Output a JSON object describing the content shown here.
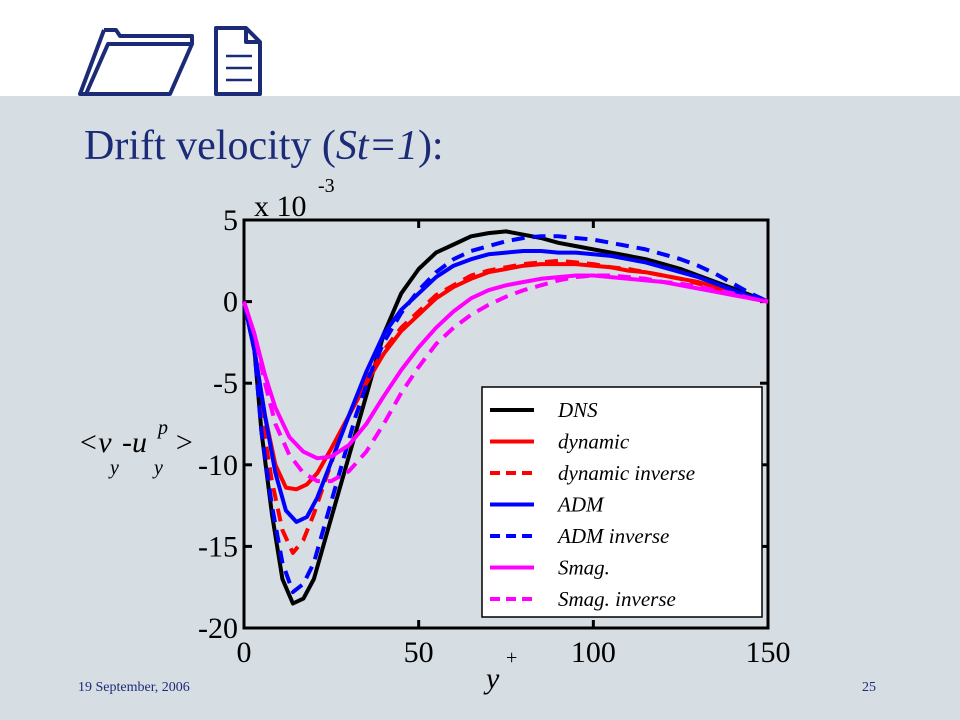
{
  "slide": {
    "title_main": "Drift velocity (",
    "title_em": "St=1",
    "title_end": "):",
    "footer_date": "19 September, 2006",
    "page_number": "25"
  },
  "chart_data": {
    "type": "line",
    "x_label": "y",
    "x_label_sup": "+",
    "y_label": {
      "open": "<v",
      "sub1": "y",
      "mid": " -u",
      "sup": "p",
      "sub2": "y",
      "close": ">"
    },
    "y_multiplier": {
      "text": "x 10",
      "exponent": "-3"
    },
    "xlim": [
      0,
      150
    ],
    "ylim": [
      -20,
      5
    ],
    "x_ticks": [
      0,
      50,
      100,
      150
    ],
    "y_ticks": [
      5,
      0,
      -5,
      -10,
      -15,
      -20
    ],
    "grid": false,
    "legend_position": "lower-right",
    "series": [
      {
        "name": "DNS",
        "color": "#000000",
        "dash": "solid",
        "points": [
          [
            0,
            0
          ],
          [
            3,
            -3
          ],
          [
            5,
            -8
          ],
          [
            8,
            -13
          ],
          [
            11,
            -17
          ],
          [
            14,
            -18.5
          ],
          [
            17,
            -18.2
          ],
          [
            20,
            -17
          ],
          [
            24,
            -14
          ],
          [
            28,
            -11
          ],
          [
            32,
            -8
          ],
          [
            36,
            -5
          ],
          [
            40,
            -2
          ],
          [
            45,
            0.5
          ],
          [
            50,
            2
          ],
          [
            55,
            3
          ],
          [
            60,
            3.5
          ],
          [
            65,
            4
          ],
          [
            70,
            4.2
          ],
          [
            75,
            4.3
          ],
          [
            80,
            4.1
          ],
          [
            85,
            3.9
          ],
          [
            90,
            3.6
          ],
          [
            95,
            3.4
          ],
          [
            100,
            3.2
          ],
          [
            105,
            3
          ],
          [
            110,
            2.8
          ],
          [
            115,
            2.6
          ],
          [
            120,
            2.3
          ],
          [
            125,
            2
          ],
          [
            130,
            1.6
          ],
          [
            135,
            1.2
          ],
          [
            140,
            0.8
          ],
          [
            145,
            0.4
          ],
          [
            150,
            0
          ]
        ]
      },
      {
        "name": "dynamic",
        "color": "#ff0000",
        "dash": "solid",
        "points": [
          [
            0,
            0
          ],
          [
            3,
            -3
          ],
          [
            6,
            -7
          ],
          [
            9,
            -10
          ],
          [
            12,
            -11.4
          ],
          [
            15,
            -11.5
          ],
          [
            18,
            -11.2
          ],
          [
            21,
            -10.5
          ],
          [
            25,
            -9
          ],
          [
            30,
            -7
          ],
          [
            35,
            -5
          ],
          [
            40,
            -3.2
          ],
          [
            45,
            -1.8
          ],
          [
            50,
            -0.8
          ],
          [
            55,
            0.2
          ],
          [
            60,
            0.9
          ],
          [
            65,
            1.4
          ],
          [
            70,
            1.8
          ],
          [
            75,
            2
          ],
          [
            80,
            2.2
          ],
          [
            85,
            2.3
          ],
          [
            90,
            2.3
          ],
          [
            95,
            2.3
          ],
          [
            100,
            2.2
          ],
          [
            105,
            2.1
          ],
          [
            110,
            1.9
          ],
          [
            115,
            1.8
          ],
          [
            120,
            1.6
          ],
          [
            125,
            1.4
          ],
          [
            130,
            1.2
          ],
          [
            135,
            0.9
          ],
          [
            140,
            0.6
          ],
          [
            145,
            0.3
          ],
          [
            150,
            0
          ]
        ]
      },
      {
        "name": "dynamic inverse",
        "color": "#ff0000",
        "dash": "dashed",
        "points": [
          [
            0,
            0
          ],
          [
            3,
            -3
          ],
          [
            5,
            -7
          ],
          [
            8,
            -11
          ],
          [
            11,
            -14
          ],
          [
            14,
            -15.4
          ],
          [
            17,
            -14.6
          ],
          [
            20,
            -13
          ],
          [
            24,
            -10.5
          ],
          [
            28,
            -8
          ],
          [
            32,
            -6
          ],
          [
            36,
            -4.4
          ],
          [
            40,
            -3
          ],
          [
            45,
            -1.6
          ],
          [
            50,
            -0.6
          ],
          [
            55,
            0.4
          ],
          [
            60,
            1
          ],
          [
            65,
            1.6
          ],
          [
            70,
            1.9
          ],
          [
            75,
            2.1
          ],
          [
            80,
            2.3
          ],
          [
            85,
            2.4
          ],
          [
            90,
            2.5
          ],
          [
            95,
            2.4
          ],
          [
            100,
            2.3
          ],
          [
            105,
            2.1
          ],
          [
            110,
            2
          ],
          [
            115,
            1.8
          ],
          [
            120,
            1.6
          ],
          [
            125,
            1.4
          ],
          [
            130,
            1.1
          ],
          [
            135,
            0.8
          ],
          [
            140,
            0.5
          ],
          [
            145,
            0.2
          ],
          [
            150,
            0
          ]
        ]
      },
      {
        "name": "ADM",
        "color": "#0000ff",
        "dash": "solid",
        "points": [
          [
            0,
            0
          ],
          [
            3,
            -3
          ],
          [
            6,
            -7
          ],
          [
            9,
            -10.5
          ],
          [
            12,
            -12.8
          ],
          [
            15,
            -13.5
          ],
          [
            18,
            -13.2
          ],
          [
            21,
            -12
          ],
          [
            25,
            -9.8
          ],
          [
            30,
            -7
          ],
          [
            35,
            -4.3
          ],
          [
            40,
            -2
          ],
          [
            45,
            -0.5
          ],
          [
            50,
            0.5
          ],
          [
            55,
            1.5
          ],
          [
            60,
            2.2
          ],
          [
            65,
            2.6
          ],
          [
            70,
            2.9
          ],
          [
            75,
            3
          ],
          [
            80,
            3.1
          ],
          [
            85,
            3.1
          ],
          [
            90,
            3
          ],
          [
            95,
            3
          ],
          [
            100,
            2.9
          ],
          [
            105,
            2.8
          ],
          [
            110,
            2.6
          ],
          [
            115,
            2.4
          ],
          [
            120,
            2.1
          ],
          [
            125,
            1.8
          ],
          [
            130,
            1.5
          ],
          [
            135,
            1.1
          ],
          [
            140,
            0.7
          ],
          [
            145,
            0.3
          ],
          [
            150,
            0
          ]
        ]
      },
      {
        "name": "ADM inverse",
        "color": "#0000ff",
        "dash": "dashed",
        "points": [
          [
            0,
            0
          ],
          [
            3,
            -3
          ],
          [
            5,
            -8
          ],
          [
            8,
            -12.5
          ],
          [
            11,
            -16
          ],
          [
            14,
            -17.8
          ],
          [
            17,
            -17.3
          ],
          [
            20,
            -16
          ],
          [
            24,
            -13
          ],
          [
            28,
            -10
          ],
          [
            32,
            -7
          ],
          [
            36,
            -4.5
          ],
          [
            40,
            -2.5
          ],
          [
            45,
            -0.7
          ],
          [
            50,
            0.7
          ],
          [
            55,
            1.8
          ],
          [
            60,
            2.6
          ],
          [
            65,
            3.1
          ],
          [
            70,
            3.4
          ],
          [
            75,
            3.7
          ],
          [
            80,
            3.9
          ],
          [
            85,
            4
          ],
          [
            90,
            4
          ],
          [
            95,
            3.9
          ],
          [
            100,
            3.8
          ],
          [
            105,
            3.6
          ],
          [
            110,
            3.4
          ],
          [
            115,
            3.2
          ],
          [
            120,
            2.9
          ],
          [
            125,
            2.6
          ],
          [
            130,
            2.2
          ],
          [
            135,
            1.7
          ],
          [
            140,
            1.1
          ],
          [
            145,
            0.5
          ],
          [
            150,
            0
          ]
        ]
      },
      {
        "name": "Smag.",
        "color": "#ff00ff",
        "dash": "solid",
        "points": [
          [
            0,
            0
          ],
          [
            3,
            -2
          ],
          [
            6,
            -4.5
          ],
          [
            9,
            -6.5
          ],
          [
            13,
            -8.3
          ],
          [
            17,
            -9.2
          ],
          [
            21,
            -9.6
          ],
          [
            25,
            -9.5
          ],
          [
            30,
            -8.8
          ],
          [
            35,
            -7.5
          ],
          [
            40,
            -5.8
          ],
          [
            45,
            -4.2
          ],
          [
            50,
            -2.8
          ],
          [
            55,
            -1.6
          ],
          [
            60,
            -0.6
          ],
          [
            65,
            0.2
          ],
          [
            70,
            0.7
          ],
          [
            75,
            1
          ],
          [
            80,
            1.2
          ],
          [
            85,
            1.4
          ],
          [
            90,
            1.5
          ],
          [
            95,
            1.6
          ],
          [
            100,
            1.6
          ],
          [
            105,
            1.5
          ],
          [
            110,
            1.4
          ],
          [
            115,
            1.3
          ],
          [
            120,
            1.2
          ],
          [
            125,
            1
          ],
          [
            130,
            0.8
          ],
          [
            135,
            0.6
          ],
          [
            140,
            0.4
          ],
          [
            145,
            0.2
          ],
          [
            150,
            0
          ]
        ]
      },
      {
        "name": "Smag. inverse",
        "color": "#ff00ff",
        "dash": "dashed",
        "points": [
          [
            0,
            0
          ],
          [
            3,
            -2
          ],
          [
            6,
            -5
          ],
          [
            9,
            -7.5
          ],
          [
            13,
            -9.4
          ],
          [
            17,
            -10.5
          ],
          [
            21,
            -11
          ],
          [
            25,
            -11
          ],
          [
            30,
            -10.4
          ],
          [
            35,
            -9.2
          ],
          [
            40,
            -7.5
          ],
          [
            45,
            -5.6
          ],
          [
            50,
            -4
          ],
          [
            55,
            -2.6
          ],
          [
            60,
            -1.6
          ],
          [
            65,
            -0.8
          ],
          [
            70,
            -0.2
          ],
          [
            75,
            0.3
          ],
          [
            80,
            0.7
          ],
          [
            85,
            1
          ],
          [
            90,
            1.3
          ],
          [
            95,
            1.5
          ],
          [
            100,
            1.6
          ],
          [
            105,
            1.6
          ],
          [
            110,
            1.5
          ],
          [
            115,
            1.4
          ],
          [
            120,
            1.2
          ],
          [
            125,
            1.1
          ],
          [
            130,
            0.9
          ],
          [
            135,
            0.7
          ],
          [
            140,
            0.5
          ],
          [
            145,
            0.2
          ],
          [
            150,
            0
          ]
        ]
      }
    ]
  }
}
